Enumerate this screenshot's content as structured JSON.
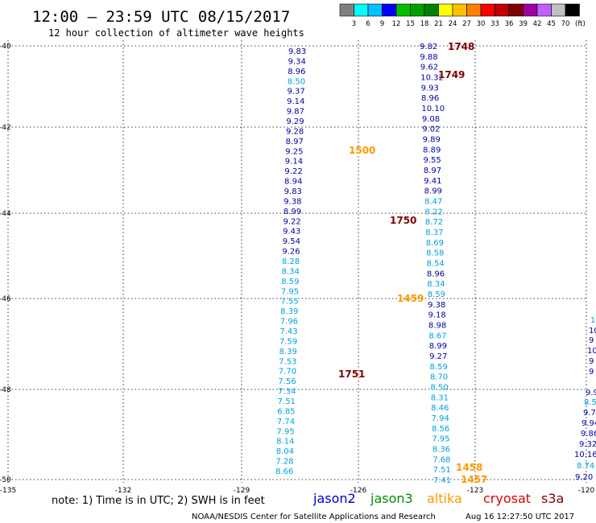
{
  "header": {
    "title": "12:00 – 23:59 UTC 08/15/2017",
    "subtitle": "12 hour collection of altimeter wave heights"
  },
  "colorbar": {
    "unit": "(ft)",
    "colors": [
      "#808080",
      "#00ffff",
      "#00bfff",
      "#0000ff",
      "#00c000",
      "#00a000",
      "#008000",
      "#ffff00",
      "#ffc000",
      "#ff8000",
      "#ff0000",
      "#c00000",
      "#800000",
      "#a000a0",
      "#c060ff",
      "#c0c0c0",
      "#000000"
    ],
    "labels": [
      "3",
      "6",
      "9",
      "12",
      "15",
      "18",
      "21",
      "24",
      "27",
      "30",
      "33",
      "36",
      "39",
      "42",
      "45",
      "70"
    ]
  },
  "map": {
    "lat_labels": [
      "-40",
      "-42",
      "-44",
      "-46",
      "-48",
      "-50"
    ],
    "lon_labels": [
      "-135",
      "-132",
      "-129",
      "-126",
      "-123",
      "-120"
    ]
  },
  "footer": {
    "note": "note: 1) Time is in UTC; 2) SWH is in feet",
    "credit": "NOAA/NESDIS Center for Satellite Applications and Research",
    "timestamp": "Aug 16 12:27:50 UTC 2017"
  },
  "legend": [
    {
      "label": "jason2",
      "color": "#0000cc"
    },
    {
      "label": "jason3",
      "color": "#009000"
    },
    {
      "label": "altika",
      "color": "#ff9900"
    },
    {
      "label": "cryosat",
      "color": "#dd0000"
    },
    {
      "label": "s3a",
      "color": "#800000"
    }
  ],
  "colors": {
    "c_lo": "#00a0dc",
    "c_hi": "#0000a0",
    "time_orange": "#ff9900",
    "time_maroon": "#800000"
  },
  "times": [
    {
      "text": "1748",
      "color": "time_maroon"
    },
    {
      "text": "1749",
      "color": "time_maroon"
    },
    {
      "text": "1500",
      "color": "time_orange"
    },
    {
      "text": "1750",
      "color": "time_maroon"
    },
    {
      "text": "1459",
      "color": "time_orange"
    },
    {
      "text": "1751",
      "color": "time_maroon"
    },
    {
      "text": "1458",
      "color": "time_orange"
    },
    {
      "text": "1457",
      "color": "time_orange"
    }
  ],
  "track_left": [
    "9.83",
    "9.34",
    "8.96",
    "8.50",
    "9.37",
    "9.14",
    "9.87",
    "9.29",
    "9.28",
    "8.97",
    "9.25",
    "9.14",
    "9.22",
    "8.94",
    "9.83",
    "9.38",
    "8.99",
    "9.22",
    "9.43",
    "9.54",
    "9.26",
    "8.28",
    "8.34",
    "8.59",
    "7.95",
    "7.55",
    "8.39",
    "7.96",
    "7.43",
    "7.59",
    "8.39",
    "7.53",
    "7.70",
    "7.56",
    "7.34",
    "7.51",
    "6.85",
    "7.74",
    "7.95",
    "8.14",
    "8.04",
    "7.28",
    "8.66"
  ],
  "track_right": [
    "9.82",
    "9.88",
    "9.62",
    "10.32",
    "9.93",
    "8.96",
    "10.10",
    "9.08",
    "9.02",
    "9.89",
    "8.89",
    "9.55",
    "8.97",
    "9.41",
    "8.99",
    "8.47",
    "8.22",
    "8.72",
    "8.37",
    "8.69",
    "8.58",
    "8.54",
    "8.96",
    "8.34",
    "8.59",
    "9.38",
    "9.18",
    "8.98",
    "8.67",
    "8.99",
    "9.27",
    "8.59",
    "8.70",
    "8.50",
    "8.31",
    "8.46",
    "7.94",
    "8.56",
    "7.95",
    "8.36",
    "7.68",
    "7.51",
    "7.41"
  ],
  "track_edge": [
    "1",
    "10",
    "9",
    "10",
    "9",
    "9",
    "9.9",
    "8.5",
    "9.7",
    "9.94",
    "9.86",
    "9.32",
    "10.16",
    "8.74",
    "9.20"
  ]
}
